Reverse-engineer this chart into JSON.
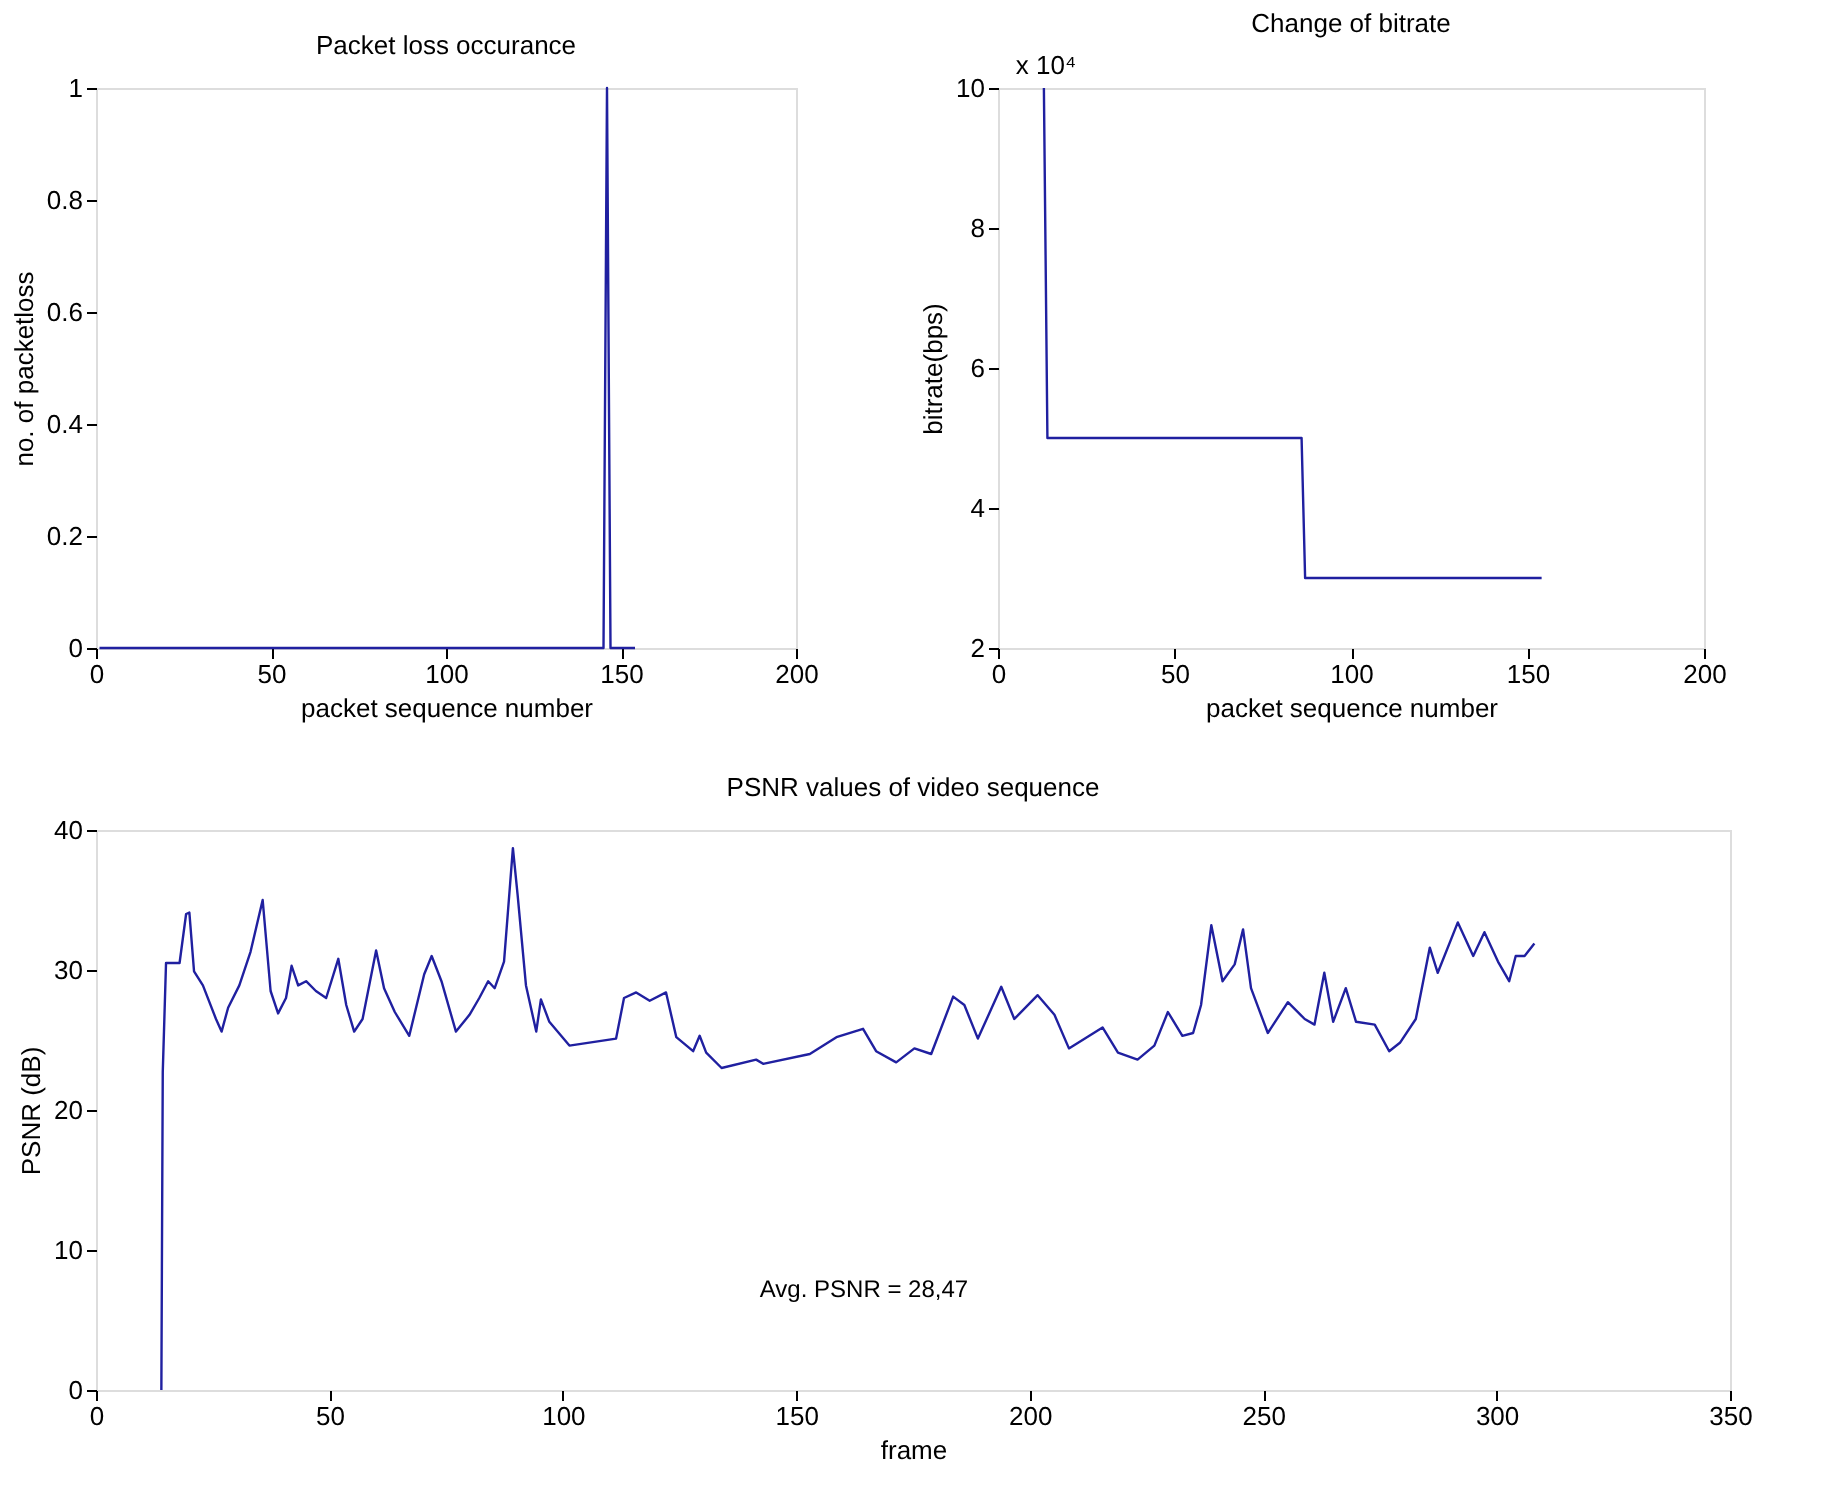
{
  "chart_data": [
    {
      "type": "line",
      "title": "Packet loss occurance",
      "xlabel": "packet sequence number",
      "ylabel": "no. of packetloss",
      "xlim": [
        0,
        200
      ],
      "xticks": [
        0,
        50,
        100,
        150,
        200
      ],
      "ylim": [
        0,
        1
      ],
      "yticks": [
        0,
        0.2,
        0.4,
        0.6,
        0.8,
        1
      ],
      "grid": false,
      "series": [
        {
          "color": "#2020a0",
          "x": [
            1,
            145,
            146,
            147,
            154
          ],
          "values": [
            0,
            0,
            1,
            0,
            0
          ]
        }
      ]
    },
    {
      "type": "line",
      "title": "Change of bitrate",
      "xlabel": "packet sequence number",
      "ylabel": "bitrate(bps)",
      "xlim": [
        0,
        200
      ],
      "xticks": [
        0,
        50,
        100,
        150,
        200
      ],
      "ylim": [
        2,
        10
      ],
      "yticks": [
        2,
        4,
        6,
        8,
        10
      ],
      "grid": false,
      "annotations": [
        "x 10⁴"
      ],
      "series": [
        {
          "color": "#2020a0",
          "x": [
            13,
            14,
            86,
            87,
            154
          ],
          "values": [
            10,
            5,
            5,
            3,
            3
          ]
        }
      ]
    },
    {
      "type": "line",
      "title": "PSNR values of video sequence",
      "xlabel": "frame",
      "ylabel": "PSNR (dB)",
      "xlim": [
        0,
        350
      ],
      "xticks": [
        0,
        50,
        100,
        150,
        200,
        250,
        300,
        350
      ],
      "ylim": [
        0,
        40
      ],
      "yticks": [
        0,
        10,
        20,
        30,
        40
      ],
      "grid": false,
      "annotations": [
        "Avg. PSNR = 28,47"
      ],
      "series": [
        {
          "color": "#2020a0",
          "x": [
            14,
            14.3,
            15,
            17.9,
            19.3,
            20,
            21,
            22.9,
            25.7,
            26.9,
            28.3,
            30.7,
            33.1,
            35.7,
            37.4,
            39,
            40.7,
            41.9,
            43.3,
            45,
            47.1,
            49.3,
            51.9,
            53.6,
            55.3,
            57.1,
            60,
            61.7,
            64,
            67.1,
            70.3,
            71.9,
            74,
            77.1,
            80,
            82.1,
            84,
            85.4,
            87.4,
            89.3,
            90.3,
            92.1,
            94.3,
            95.3,
            97.1,
            101.4,
            111.4,
            113.1,
            115.7,
            118.6,
            122.1,
            124.3,
            127.9,
            129.3,
            130.7,
            134,
            141.4,
            142.9,
            152.9,
            158.6,
            164.3,
            167.1,
            171.4,
            175.3,
            178.9,
            183.6,
            186,
            188.9,
            193.9,
            196.7,
            201.7,
            205.3,
            208.4,
            215.6,
            218.9,
            223.1,
            226.7,
            229.6,
            232.7,
            235,
            236.7,
            238.9,
            241.3,
            243.9,
            245.7,
            247.4,
            251,
            255.3,
            258.9,
            261,
            263.1,
            265,
            267.7,
            269.9,
            273.9,
            277,
            279.3,
            282.7,
            285.7,
            287.4,
            291.7,
            295,
            297.4,
            300.3,
            302.7,
            304.1,
            306,
            308.1
          ],
          "values": [
            0,
            22.7,
            30.5,
            30.5,
            34,
            34.1,
            29.9,
            28.9,
            26.5,
            25.6,
            27.3,
            28.9,
            31.3,
            35,
            28.5,
            26.9,
            28,
            30.3,
            28.9,
            29.2,
            28.5,
            28,
            30.8,
            27.5,
            25.6,
            26.5,
            31.4,
            28.7,
            27,
            25.3,
            29.7,
            31,
            29.2,
            25.6,
            26.8,
            28,
            29.2,
            28.7,
            30.6,
            38.7,
            35.4,
            28.9,
            25.6,
            27.9,
            26.3,
            24.6,
            25.1,
            28,
            28.4,
            27.8,
            28.4,
            25.2,
            24.2,
            25.3,
            24.1,
            23,
            23.6,
            23.3,
            24,
            25.2,
            25.8,
            24.2,
            23.4,
            24.4,
            24,
            28.1,
            27.5,
            25.1,
            28.8,
            26.5,
            28.2,
            26.8,
            24.4,
            25.9,
            24.1,
            23.6,
            24.6,
            27,
            25.3,
            25.5,
            27.5,
            33.2,
            29.2,
            30.4,
            32.9,
            28.7,
            25.5,
            27.7,
            26.5,
            26.1,
            29.8,
            26.3,
            28.7,
            26.3,
            26.1,
            24.2,
            24.8,
            26.5,
            31.6,
            29.8,
            33.4,
            31,
            32.7,
            30.6,
            29.2,
            31,
            31,
            31.9
          ]
        }
      ]
    }
  ]
}
